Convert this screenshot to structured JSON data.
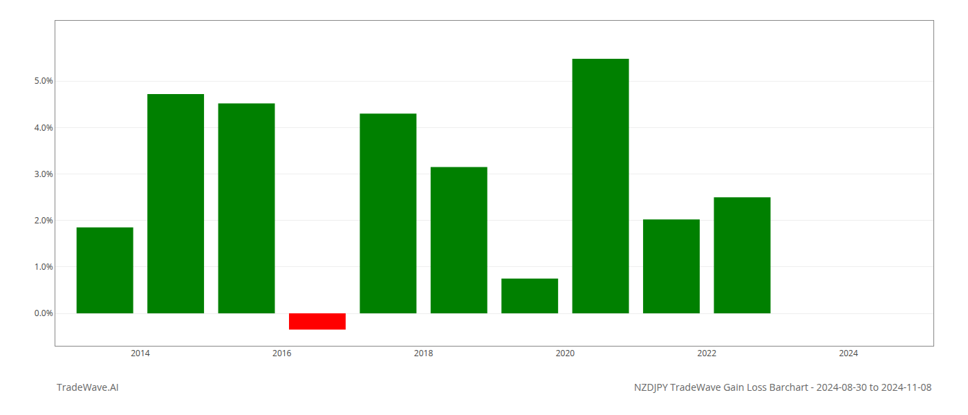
{
  "chart_data": {
    "type": "bar",
    "title": "NZDJPY TradeWave Gain Loss Barchart - 2024-08-30 to 2024-11-08",
    "annotations": [
      "TradeWave.AI"
    ],
    "x": [
      2013.5,
      2014.5,
      2015.5,
      2016.5,
      2017.5,
      2018.5,
      2019.5,
      2020.5,
      2021.5,
      2022.5
    ],
    "values": [
      0.0185,
      0.0472,
      0.0452,
      -0.0035,
      0.043,
      0.0315,
      0.0075,
      0.0548,
      0.0202,
      0.025
    ],
    "colors": [
      "#008000",
      "#008000",
      "#008000",
      "#ff0000",
      "#008000",
      "#008000",
      "#008000",
      "#008000",
      "#008000",
      "#008000"
    ],
    "xlim": [
      2012.8,
      2025.2
    ],
    "xticks": [
      2014,
      2016,
      2018,
      2020,
      2022,
      2024
    ],
    "ylim": [
      -0.007,
      0.063
    ],
    "yticks": [
      {
        "value": 0.0,
        "label": "0.0%"
      },
      {
        "value": 0.01,
        "label": "1.0%"
      },
      {
        "value": 0.02,
        "label": "2.0%"
      },
      {
        "value": 0.03,
        "label": "3.0%"
      },
      {
        "value": 0.04,
        "label": "4.0%"
      },
      {
        "value": 0.05,
        "label": "5.0%"
      }
    ],
    "grid": true
  }
}
